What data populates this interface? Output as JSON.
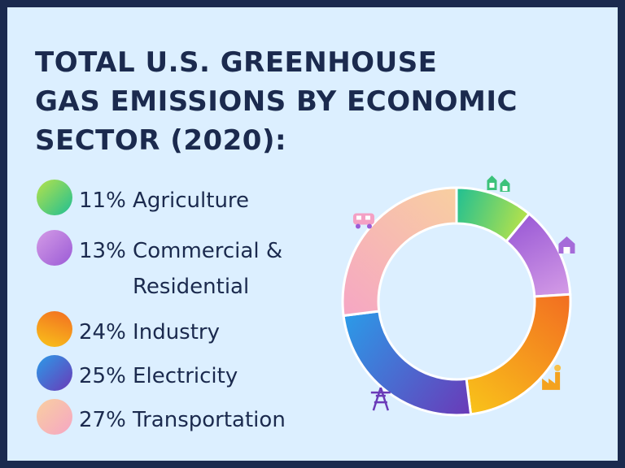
{
  "title": "TOTAL U.S. GREENHOUSE\nGAS EMISSIONS BY ECONOMIC\nSECTOR (2020):",
  "legend": [
    {
      "line1": "11% Agriculture",
      "line2": ""
    },
    {
      "line1": "13% Commercial &",
      "line2": "Residential"
    },
    {
      "line1": "24% Industry",
      "line2": ""
    },
    {
      "line1": "25% Electricity",
      "line2": ""
    },
    {
      "line1": "27% Transportation",
      "line2": ""
    }
  ],
  "chart_data": {
    "type": "pie",
    "donut": true,
    "title": "TOTAL U.S. GREENHOUSE GAS EMISSIONS BY ECONOMIC SECTOR (2020):",
    "unit": "%",
    "categories": [
      "Agriculture",
      "Commercial & Residential",
      "Industry",
      "Electricity",
      "Transportation"
    ],
    "values": [
      11,
      13,
      24,
      25,
      27
    ],
    "start_angle_deg": 0,
    "direction": "clockwise",
    "legend_position": "left",
    "colors": [
      [
        "#1fbf93",
        "#b6e24a"
      ],
      [
        "#9b5bd6",
        "#d49be6"
      ],
      [
        "#f26d21",
        "#f9c31a"
      ],
      [
        "#6a3ab8",
        "#2b9be8"
      ],
      [
        "#f6a6c4",
        "#f8cfa0"
      ]
    ],
    "icons": [
      "barn-icon",
      "house-icon",
      "factory-icon",
      "power-tower-icon",
      "vehicle-icon"
    ]
  }
}
